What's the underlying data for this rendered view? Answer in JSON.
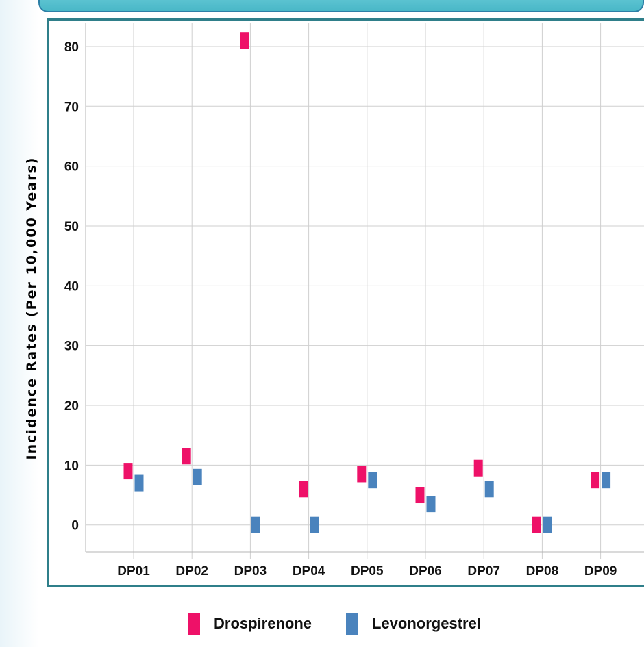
{
  "chart_data": {
    "type": "scatter",
    "ylabel": "Incidence Rates (Per 10,000 Years)",
    "xlabel": "",
    "title": "",
    "categories": [
      "DP01",
      "DP02",
      "DP03",
      "DP04",
      "DP05",
      "DP06",
      "DP07",
      "DP08",
      "DP09"
    ],
    "ylim": [
      -4.5,
      84
    ],
    "yticks": [
      0,
      10,
      20,
      30,
      40,
      50,
      60,
      70,
      80
    ],
    "grid": true,
    "legend_position": "bottom",
    "series": [
      {
        "name": "Drospirenone",
        "color": "#ee1168",
        "values": [
          9,
          11.5,
          81,
          6,
          8.5,
          5,
          9.5,
          0,
          7.5
        ]
      },
      {
        "name": "Levonorgestrel",
        "color": "#4a83bd",
        "values": [
          7,
          8,
          0,
          0,
          7.5,
          3.5,
          6,
          0,
          7.5
        ]
      }
    ]
  }
}
